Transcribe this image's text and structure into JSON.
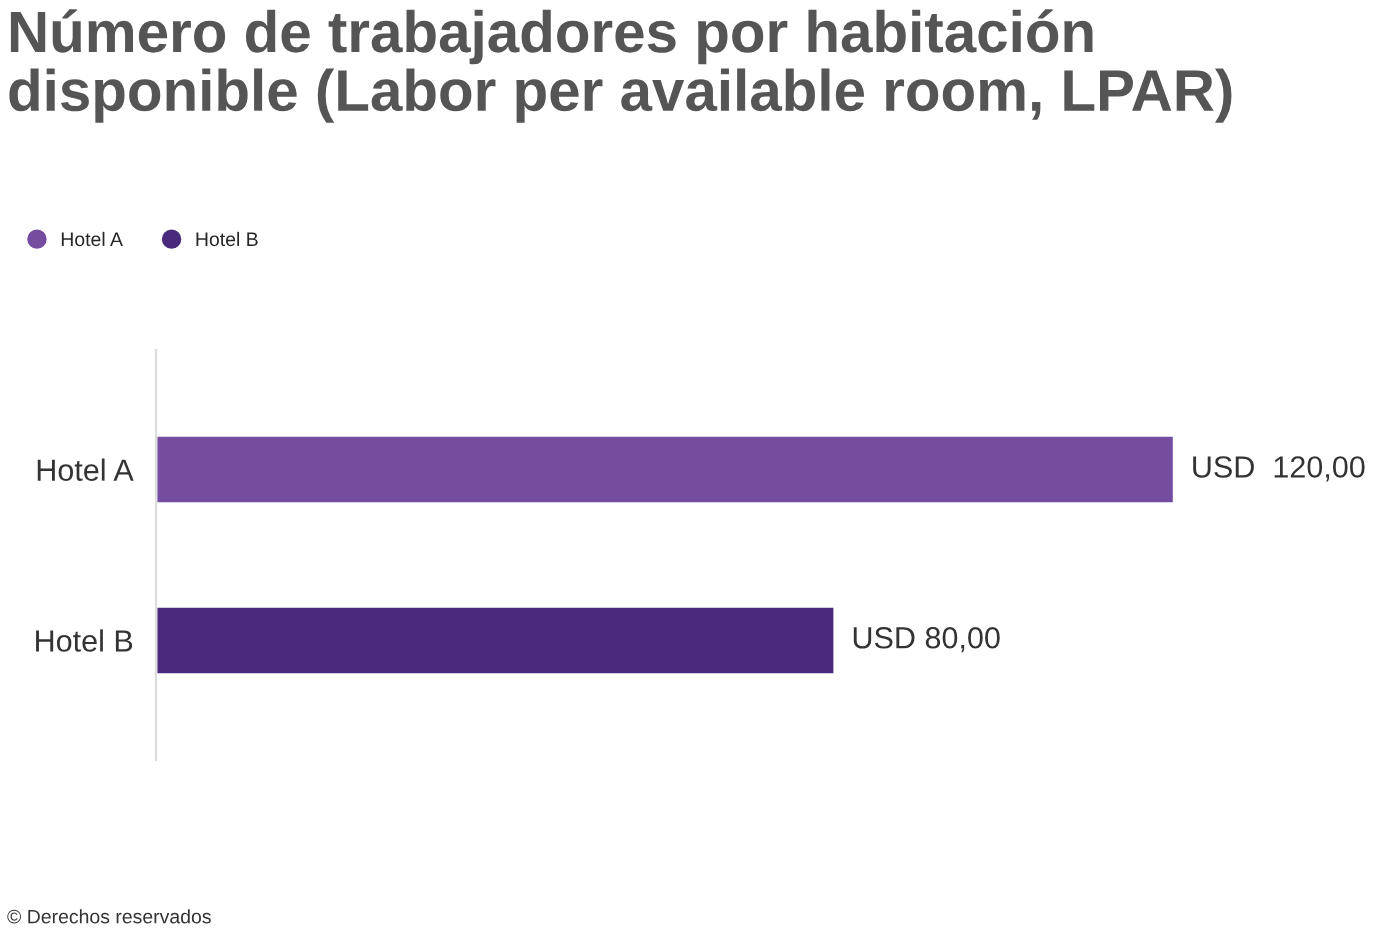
{
  "chart_data": {
    "type": "bar",
    "orientation": "horizontal",
    "title": "Número de trabajadores por habitación\ndisponible (Labor per available room, LPAR)",
    "categories": [
      "Hotel A",
      "Hotel B"
    ],
    "series": [
      {
        "name": "Hotel A",
        "color": "#744ca0",
        "values": [
          120,
          null
        ],
        "value_labels": [
          "USD  120,00",
          null
        ]
      },
      {
        "name": "Hotel B",
        "color": "#4a2a7c",
        "values": [
          null,
          80
        ],
        "value_labels": [
          null,
          "USD 80,00"
        ]
      }
    ],
    "grid": false,
    "legend": "top left",
    "tick_labels": "y",
    "annotations": [
      "© Derechos reservados"
    ]
  }
}
